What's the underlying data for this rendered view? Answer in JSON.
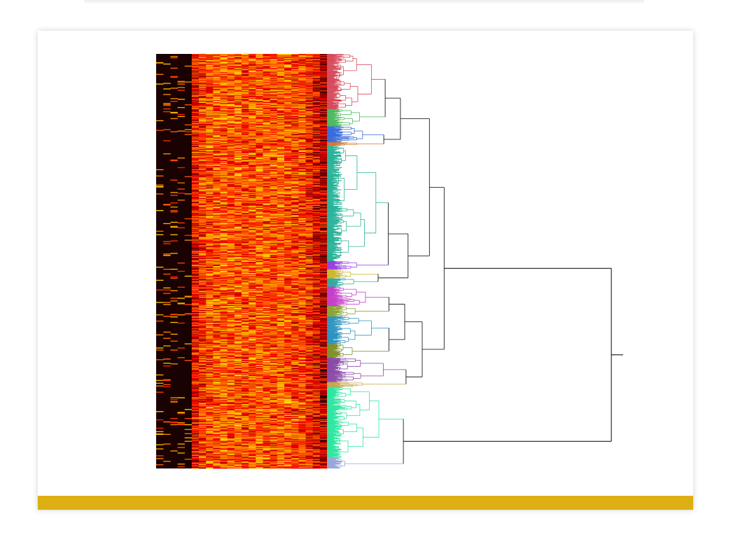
{
  "slide": {
    "accent_color": "#dcaf13"
  },
  "chart_data": {
    "type": "heatmap",
    "description_free": true,
    "title": "",
    "xlabel": "",
    "ylabel": "",
    "colormap": "hot",
    "rows": 600,
    "columns": 24,
    "value_range": [
      0,
      1
    ],
    "column_profile": [
      0.02,
      0.03,
      0.05,
      0.07,
      0.09,
      0.45,
      0.55,
      0.58,
      0.6,
      0.62,
      0.6,
      0.62,
      0.58,
      0.6,
      0.62,
      0.6,
      0.58,
      0.62,
      0.6,
      0.55,
      0.58,
      0.5,
      0.42,
      0.35
    ],
    "dendrogram": {
      "orientation": "right",
      "leaf_count": 600,
      "clusters": [
        {
          "color": "#d64b5b",
          "leaves": [
            0,
            80
          ],
          "height": 0.3
        },
        {
          "color": "#4cb85c",
          "leaves": [
            80,
            105
          ],
          "height": 0.22
        },
        {
          "color": "#3a6bdc",
          "leaves": [
            105,
            128
          ],
          "height": 0.24
        },
        {
          "color": "#d4782a",
          "leaves": [
            128,
            133
          ],
          "height": 0.2
        },
        {
          "color": "#2ab39a",
          "leaves": [
            133,
            300
          ],
          "height": 0.33
        },
        {
          "color": "#9a3fe0",
          "leaves": [
            300,
            312
          ],
          "height": 0.2
        },
        {
          "color": "#c9b62a",
          "leaves": [
            312,
            325
          ],
          "height": 0.16
        },
        {
          "color": "#34a8a0",
          "leaves": [
            325,
            337
          ],
          "height": 0.18
        },
        {
          "color": "#c63bc8",
          "leaves": [
            337,
            365
          ],
          "height": 0.26
        },
        {
          "color": "#8aa534",
          "leaves": [
            365,
            380
          ],
          "height": 0.19
        },
        {
          "color": "#2e93c0",
          "leaves": [
            380,
            420
          ],
          "height": 0.3
        },
        {
          "color": "#7d8f26",
          "leaves": [
            420,
            440
          ],
          "height": 0.17
        },
        {
          "color": "#8a4aa8",
          "leaves": [
            440,
            475
          ],
          "height": 0.38
        },
        {
          "color": "#c9a64a",
          "leaves": [
            475,
            482
          ],
          "height": 0.24
        },
        {
          "color": "#2ee6a0",
          "leaves": [
            482,
            585
          ],
          "height": 0.35
        },
        {
          "color": "#9aa6d8",
          "leaves": [
            585,
            600
          ],
          "height": 0.12
        }
      ],
      "link_color": "#000000"
    }
  }
}
